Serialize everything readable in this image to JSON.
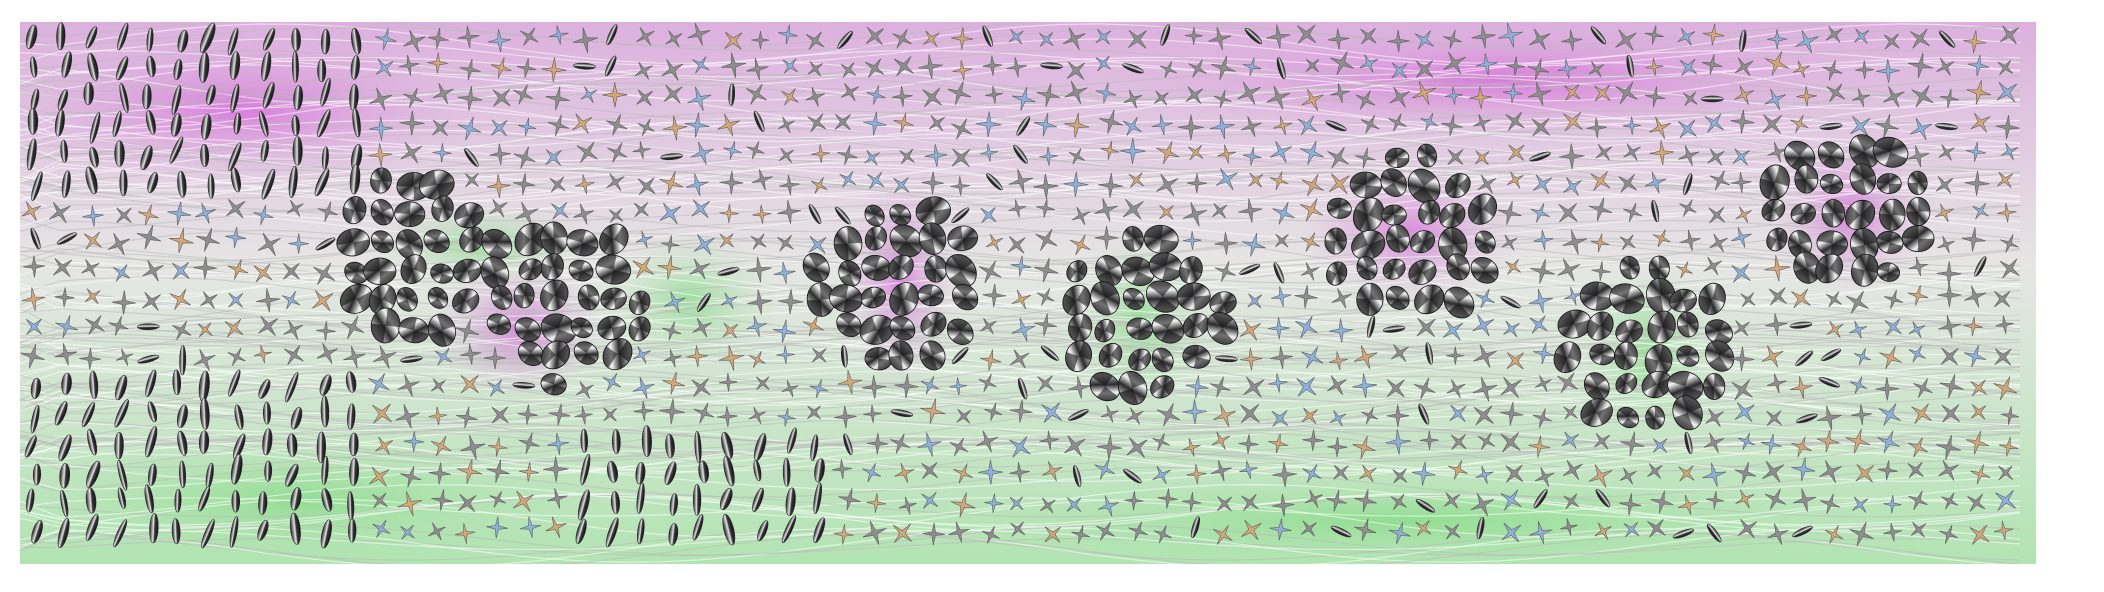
{
  "image": {
    "subject": "tensor-field-glyph-visualization",
    "colors": {
      "pink": "#dcb0de",
      "green": "#b2e4b2",
      "neutral": "#e6e6e4",
      "magenta": "#d55ad8",
      "bright-green": "#7ad97a",
      "glyph-dark": "#2c2c2e",
      "glyph-light": "#d8d8d8",
      "star-grey": "#8e8e8e",
      "star-blue": "#8fb0d8",
      "star-orange": "#d2a87a"
    },
    "glyph_types": [
      "ellipsoid-glyph",
      "star-glyph",
      "disc-glyph"
    ]
  }
}
